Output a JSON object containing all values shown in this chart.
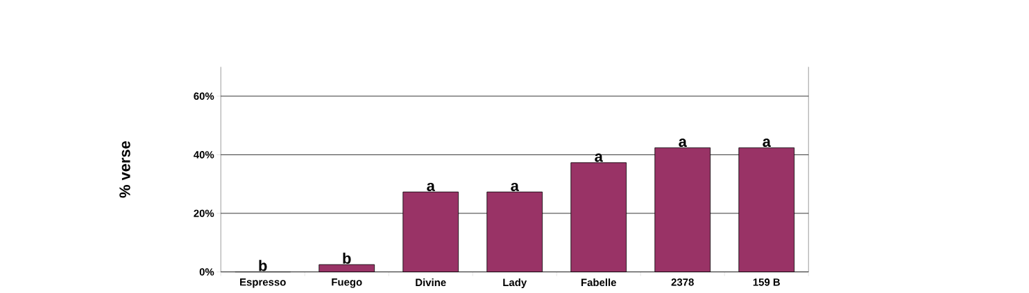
{
  "chart_data": {
    "type": "bar",
    "ylabel": "% verse",
    "categories": [
      "Espresso",
      "Fuego",
      "Divine",
      "Lady",
      "Fabelle",
      "2378",
      "159 B"
    ],
    "values": [
      0,
      2.5,
      27.3,
      27.3,
      37.3,
      42.4,
      42.4
    ],
    "color": "#993366",
    "ylim": [
      0,
      70
    ],
    "yticks": [
      {
        "value": 0,
        "label": "0%"
      },
      {
        "value": 20,
        "label": "20%"
      },
      {
        "value": 40,
        "label": "40%"
      },
      {
        "value": 60,
        "label": "60%"
      }
    ],
    "grid": "y",
    "annotations": [
      {
        "text": "b",
        "x": "Espresso",
        "y": 0
      },
      {
        "text": "b",
        "x": "Fuego",
        "y": 2.5
      },
      {
        "text": "a",
        "x": "Divine",
        "y": 27.3
      },
      {
        "text": "a",
        "x": "Lady",
        "y": 27.3
      },
      {
        "text": "a",
        "x": "Fabelle",
        "y": 37.3
      },
      {
        "text": "a",
        "x": "2378",
        "y": 42.4
      },
      {
        "text": "a",
        "x": "159 B",
        "y": 42.4
      }
    ]
  }
}
